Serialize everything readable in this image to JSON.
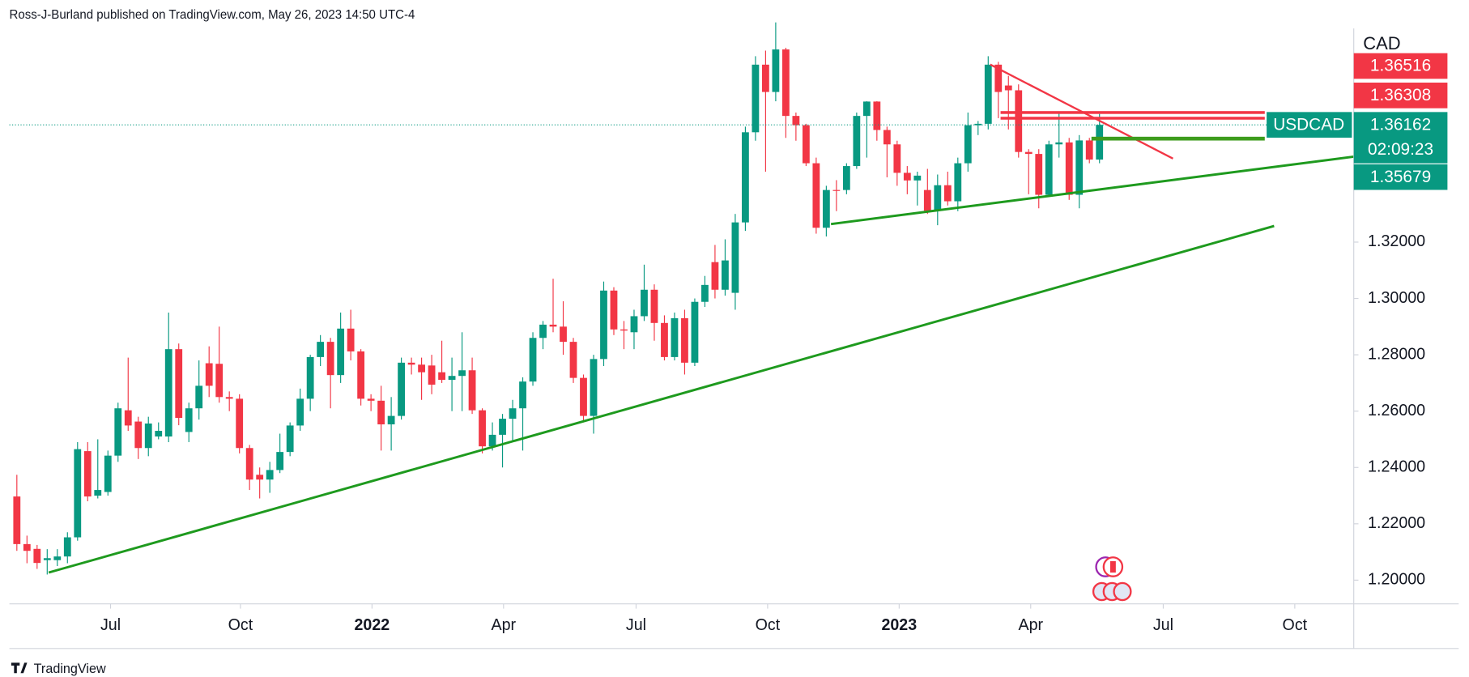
{
  "chart_data": {
    "type": "candlestick",
    "header": "Ross-J-Burland published on TradingView.com, May 26, 2023 14:50 UTC-4",
    "brand": "TradingView",
    "currency": "CAD",
    "symbol": "USDCAD",
    "last_price_label": "1.36162",
    "countdown": "02:09:23",
    "price_labels": [
      {
        "label": "1.36516",
        "color": "#f23645"
      },
      {
        "label": "1.36308",
        "color": "#f23645"
      },
      {
        "label": "1.35679",
        "color": "#089981"
      }
    ],
    "up_color": "#089981",
    "down_color": "#f23645",
    "open": [
      1.2297,
      1.2128,
      1.2111,
      1.2071,
      1.2071,
      1.2084,
      1.2152,
      1.2458,
      1.23,
      1.2313,
      1.2442,
      1.2603,
      1.2563,
      1.2469,
      1.251,
      1.251,
      1.282,
      1.2526,
      1.261,
      1.277,
      1.2768,
      1.265,
      1.2644,
      1.2469,
      1.2374,
      1.2357,
      1.2391,
      1.2455,
      1.2549,
      1.2644,
      1.2792,
      1.2846,
      1.2728,
      1.2893,
      1.2812,
      1.2644,
      1.2637,
      1.2553,
      1.2583,
      1.2772,
      1.2765,
      1.2762,
      1.2738,
      1.2711,
      1.2725,
      1.2745,
      1.2603,
      1.2475,
      1.2516,
      1.2573,
      1.261,
      1.2705,
      1.286,
      1.2907,
      1.29,
      1.2846,
      1.2718,
      1.2583,
      1.2785,
      1.3028,
      1.289,
      1.288,
      1.2937,
      1.3031,
      1.2913,
      1.2792,
      1.293,
      1.2772,
      1.2988,
      1.3129,
      1.3031,
      1.302,
      1.327,
      1.359,
      1.383,
      1.3733,
      1.3884,
      1.3648,
      1.3615,
      1.348,
      1.3251,
      1.3385,
      1.3385,
      1.347,
      1.3648,
      1.3699,
      1.3598,
      1.3547,
      1.3446,
      1.3419,
      1.3385,
      1.3311,
      1.3402,
      1.3345,
      1.348,
      1.3615,
      1.362,
      1.383,
      1.3756,
      1.3739,
      1.352,
      1.3513,
      1.3368,
      1.3547,
      1.3554,
      1.3368,
      1.3561,
      1.3493
    ],
    "high": [
      1.2374,
      1.2158,
      1.2125,
      1.211,
      1.211,
      1.217,
      1.249,
      1.249,
      1.25,
      1.246,
      1.263,
      1.279,
      1.258,
      1.258,
      1.256,
      1.295,
      1.284,
      1.263,
      1.278,
      1.283,
      1.29,
      1.267,
      1.266,
      1.248,
      1.24,
      1.242,
      1.252,
      1.256,
      1.268,
      1.28,
      1.287,
      1.286,
      1.295,
      1.296,
      1.282,
      1.266,
      1.269,
      1.265,
      1.279,
      1.279,
      1.279,
      1.28,
      1.285,
      1.279,
      1.288,
      1.279,
      1.261,
      1.256,
      1.259,
      1.264,
      1.272,
      1.288,
      1.292,
      1.307,
      1.299,
      1.286,
      1.273,
      1.28,
      1.306,
      1.304,
      1.292,
      1.296,
      1.312,
      1.305,
      1.294,
      1.295,
      1.296,
      1.3,
      1.308,
      1.319,
      1.321,
      1.33,
      1.361,
      1.386,
      1.388,
      1.398,
      1.389,
      1.366,
      1.362,
      1.35,
      1.34,
      1.342,
      1.348,
      1.366,
      1.37,
      1.37,
      1.361,
      1.356,
      1.347,
      1.345,
      1.346,
      1.344,
      1.345,
      1.35,
      1.366,
      1.363,
      1.386,
      1.384,
      1.379,
      1.376,
      1.353,
      1.353,
      1.356,
      1.366,
      1.357,
      1.358,
      1.357,
      1.3655
    ],
    "low": [
      1.2104,
      1.206,
      1.204,
      1.202,
      1.205,
      1.206,
      1.214,
      1.228,
      1.229,
      1.23,
      1.242,
      1.253,
      1.243,
      1.244,
      1.25,
      1.249,
      1.255,
      1.249,
      1.257,
      1.265,
      1.263,
      1.26,
      1.245,
      1.232,
      1.229,
      1.231,
      1.238,
      1.244,
      1.253,
      1.26,
      1.276,
      1.261,
      1.27,
      1.278,
      1.262,
      1.26,
      1.246,
      1.246,
      1.257,
      1.273,
      1.264,
      1.266,
      1.27,
      1.26,
      1.26,
      1.259,
      1.245,
      1.246,
      1.24,
      1.249,
      1.246,
      1.269,
      1.282,
      1.288,
      1.28,
      1.27,
      1.256,
      1.252,
      1.276,
      1.287,
      1.282,
      1.282,
      1.292,
      1.285,
      1.278,
      1.278,
      1.273,
      1.276,
      1.297,
      1.3,
      1.301,
      1.296,
      1.324,
      1.356,
      1.345,
      1.37,
      1.357,
      1.356,
      1.347,
      1.323,
      1.322,
      1.331,
      1.337,
      1.346,
      1.35,
      1.356,
      1.343,
      1.34,
      1.337,
      1.333,
      1.33,
      1.326,
      1.333,
      1.331,
      1.345,
      1.358,
      1.36,
      1.364,
      1.36,
      1.35,
      1.337,
      1.332,
      1.336,
      1.35,
      1.335,
      1.332,
      1.348,
      1.348
    ],
    "close": [
      1.2128,
      1.2104,
      1.2061,
      1.2078,
      1.2084,
      1.2152,
      1.2465,
      1.2297,
      1.232,
      1.2442,
      1.261,
      1.2549,
      1.2469,
      1.2556,
      1.253,
      1.282,
      1.2576,
      1.261,
      1.269,
      1.269,
      1.265,
      1.2644,
      1.2469,
      1.2357,
      1.2357,
      1.2391,
      1.2455,
      1.2549,
      1.2644,
      1.2792,
      1.2846,
      1.2728,
      1.2893,
      1.2812,
      1.2644,
      1.2637,
      1.2553,
      1.2583,
      1.2772,
      1.2765,
      1.2738,
      1.2694,
      1.2711,
      1.2725,
      1.2745,
      1.2603,
      1.2475,
      1.2516,
      1.2573,
      1.261,
      1.2705,
      1.286,
      1.2907,
      1.29,
      1.2846,
      1.2718,
      1.2583,
      1.2785,
      1.3028,
      1.289,
      1.2886,
      1.2937,
      1.3031,
      1.2913,
      1.2792,
      1.293,
      1.2772,
      1.2988,
      1.3048,
      1.3031,
      1.3135,
      1.327,
      1.359,
      1.383,
      1.3733,
      1.3884,
      1.3648,
      1.3615,
      1.348,
      1.3251,
      1.3385,
      1.3382,
      1.347,
      1.3648,
      1.3699,
      1.3598,
      1.3547,
      1.3446,
      1.3419,
      1.3436,
      1.3311,
      1.3402,
      1.3345,
      1.348,
      1.3615,
      1.362,
      1.383,
      1.3733,
      1.3739,
      1.352,
      1.3513,
      1.3368,
      1.3547,
      1.3554,
      1.3368,
      1.3561,
      1.3493,
      1.36162
    ],
    "ylim": [
      1.19157,
      1.39584
    ],
    "yticks": [
      {
        "value": 1.2,
        "label": "1.20000"
      },
      {
        "value": 1.22,
        "label": "1.22000"
      },
      {
        "value": 1.24,
        "label": "1.24000"
      },
      {
        "value": 1.26,
        "label": "1.26000"
      },
      {
        "value": 1.28,
        "label": "1.28000"
      },
      {
        "value": 1.3,
        "label": "1.30000"
      },
      {
        "value": 1.32,
        "label": "1.32000"
      }
    ],
    "xlim": [
      -0.74,
      132.13
    ],
    "xticks": [
      {
        "value": 9.26,
        "label": "Jul"
      },
      {
        "value": 22.1,
        "label": "Oct"
      },
      {
        "value": 35.1,
        "label": "2022"
      },
      {
        "value": 48.1,
        "label": "Apr"
      },
      {
        "value": 61.2,
        "label": "Jul"
      },
      {
        "value": 74.2,
        "label": "Oct"
      },
      {
        "value": 87.2,
        "label": "2023"
      },
      {
        "value": 100.2,
        "label": "Apr"
      },
      {
        "value": 113.3,
        "label": "Jul"
      },
      {
        "value": 126.3,
        "label": "Oct"
      }
    ]
  }
}
